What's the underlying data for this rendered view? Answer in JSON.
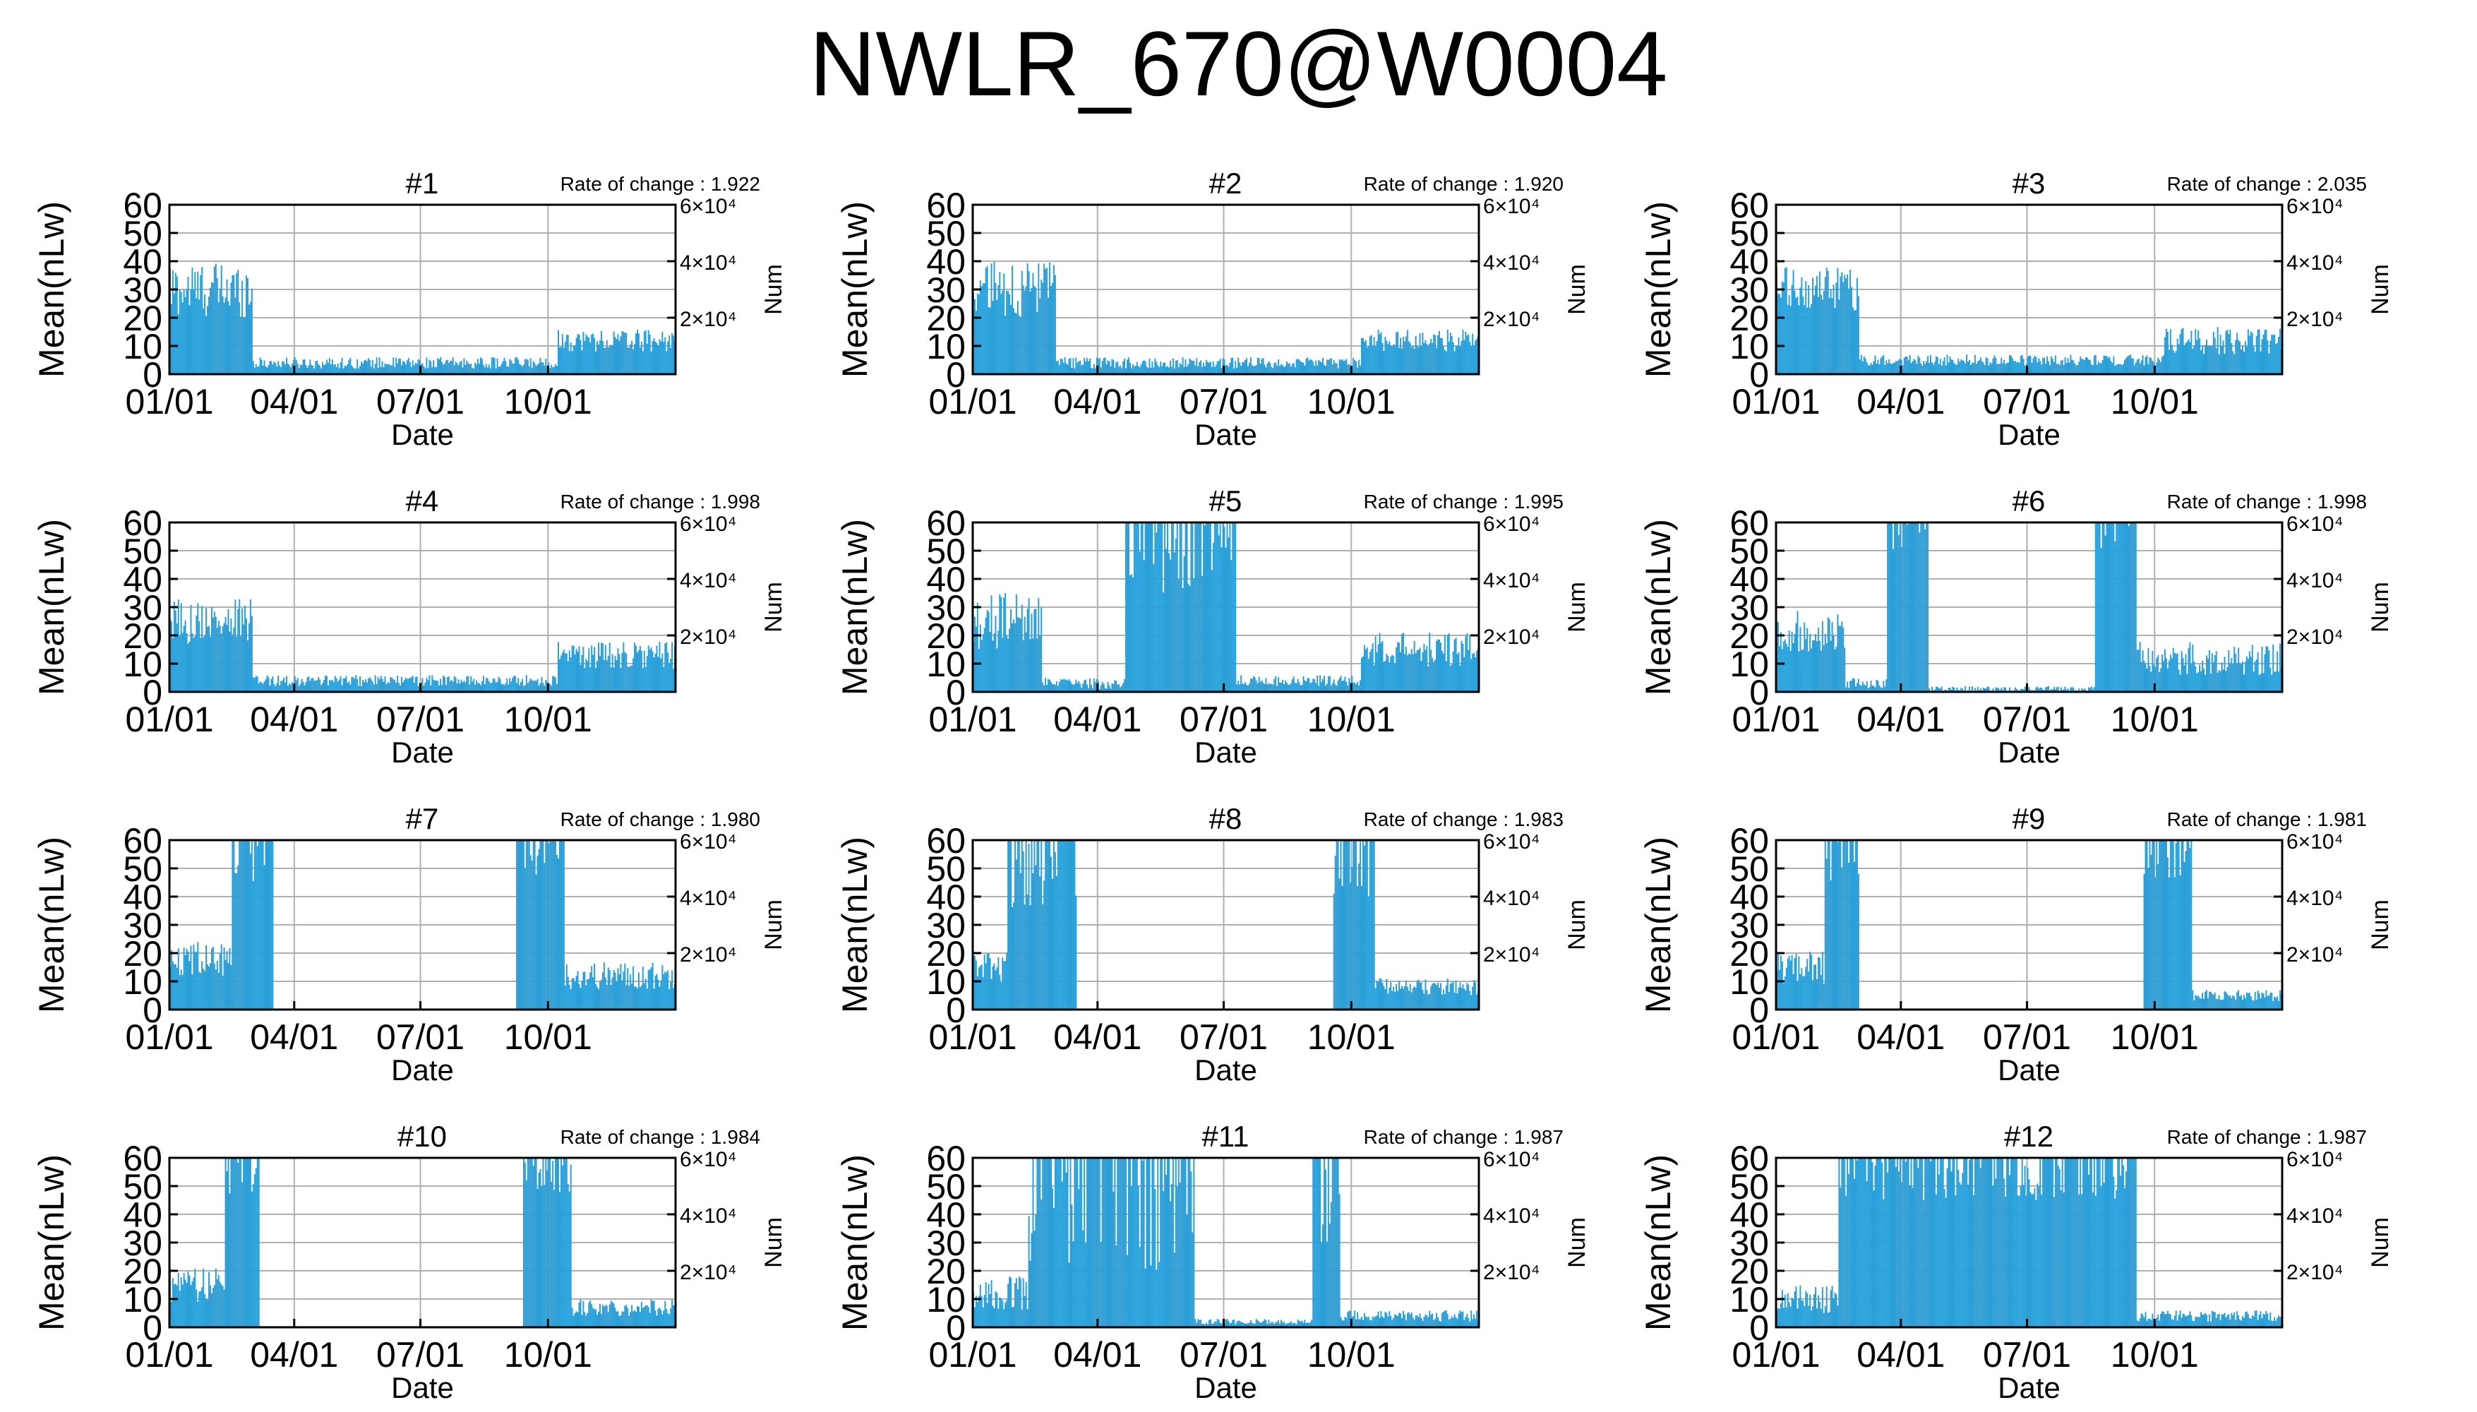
{
  "title": "NWLR_670@W0004",
  "colors": {
    "bars": "#2b9fd8",
    "grid": "#b0b0b0",
    "frame": "#000000"
  },
  "shared": {
    "xlabel": "Date",
    "ylabel": "Mean(nLw)",
    "y2label": "Num",
    "yticks": [
      0,
      10,
      20,
      30,
      40,
      50,
      60
    ],
    "ylim": [
      0,
      60
    ],
    "xticks": [
      {
        "label": "01/01",
        "day": 0
      },
      {
        "label": "04/01",
        "day": 90
      },
      {
        "label": "07/01",
        "day": 181
      },
      {
        "label": "10/01",
        "day": 273
      }
    ],
    "xlim_days": [
      0,
      365
    ],
    "y2ticks": [
      {
        "label": "2×10⁴",
        "value": 20000
      },
      {
        "label": "4×10⁴",
        "value": 40000
      },
      {
        "label": "6×10⁴",
        "value": 60000
      }
    ],
    "rate_prefix": "Rate of change : "
  },
  "chart_data": [
    {
      "type": "bar",
      "title": "#1",
      "rate": "1.922",
      "note": "Daily mean bars; values estimated from the figure",
      "segments": [
        [
          0,
          60,
          30,
          10
        ],
        [
          60,
          280,
          4,
          2
        ],
        [
          280,
          365,
          12,
          4
        ]
      ]
    },
    {
      "type": "bar",
      "title": "#2",
      "rate": "1.920",
      "segments": [
        [
          0,
          60,
          30,
          10
        ],
        [
          60,
          280,
          4,
          2
        ],
        [
          280,
          365,
          12,
          4
        ]
      ]
    },
    {
      "type": "bar",
      "title": "#3",
      "rate": "2.035",
      "segments": [
        [
          0,
          60,
          30,
          8
        ],
        [
          60,
          280,
          5,
          2
        ],
        [
          280,
          365,
          12,
          5
        ]
      ]
    },
    {
      "type": "bar",
      "title": "#4",
      "rate": "1.998",
      "segments": [
        [
          0,
          60,
          25,
          8
        ],
        [
          60,
          280,
          4,
          2
        ],
        [
          280,
          365,
          13,
          5
        ]
      ]
    },
    {
      "type": "bar",
      "title": "#5",
      "rate": "1.995",
      "segments": [
        [
          0,
          50,
          25,
          10
        ],
        [
          50,
          110,
          3,
          2
        ],
        [
          110,
          190,
          55,
          20
        ],
        [
          190,
          280,
          4,
          2
        ],
        [
          280,
          365,
          15,
          6
        ]
      ]
    },
    {
      "type": "bar",
      "title": "#6",
      "rate": "1.998",
      "segments": [
        [
          0,
          50,
          22,
          8
        ],
        [
          50,
          80,
          3,
          2
        ],
        [
          80,
          110,
          58,
          10
        ],
        [
          110,
          230,
          1,
          1
        ],
        [
          230,
          260,
          58,
          8
        ],
        [
          260,
          365,
          12,
          6
        ]
      ]
    },
    {
      "type": "bar",
      "title": "#7",
      "rate": "1.980",
      "segments": [
        [
          0,
          45,
          18,
          6
        ],
        [
          45,
          75,
          55,
          10
        ],
        [
          75,
          250,
          0,
          0
        ],
        [
          250,
          285,
          55,
          10
        ],
        [
          285,
          365,
          12,
          5
        ]
      ]
    },
    {
      "type": "bar",
      "title": "#8",
      "rate": "1.983",
      "segments": [
        [
          0,
          25,
          15,
          6
        ],
        [
          25,
          75,
          50,
          15
        ],
        [
          75,
          260,
          0,
          0
        ],
        [
          260,
          290,
          50,
          15
        ],
        [
          290,
          365,
          8,
          3
        ]
      ]
    },
    {
      "type": "bar",
      "title": "#9",
      "rate": "1.981",
      "segments": [
        [
          0,
          35,
          15,
          6
        ],
        [
          35,
          60,
          55,
          10
        ],
        [
          60,
          265,
          0,
          0
        ],
        [
          265,
          300,
          55,
          10
        ],
        [
          300,
          365,
          5,
          2
        ]
      ]
    },
    {
      "type": "bar",
      "title": "#10",
      "rate": "1.984",
      "segments": [
        [
          0,
          40,
          15,
          6
        ],
        [
          40,
          65,
          55,
          8
        ],
        [
          65,
          255,
          0,
          0
        ],
        [
          255,
          290,
          55,
          8
        ],
        [
          290,
          365,
          7,
          3
        ]
      ]
    },
    {
      "type": "bar",
      "title": "#11",
      "rate": "1.987",
      "segments": [
        [
          0,
          40,
          12,
          6
        ],
        [
          40,
          160,
          40,
          20
        ],
        [
          160,
          245,
          2,
          1
        ],
        [
          245,
          265,
          45,
          15
        ],
        [
          265,
          365,
          4,
          2
        ]
      ]
    },
    {
      "type": "bar",
      "title": "#12",
      "rate": "1.987",
      "segments": [
        [
          0,
          45,
          10,
          5
        ],
        [
          45,
          260,
          55,
          10
        ],
        [
          260,
          365,
          4,
          2
        ]
      ]
    }
  ]
}
